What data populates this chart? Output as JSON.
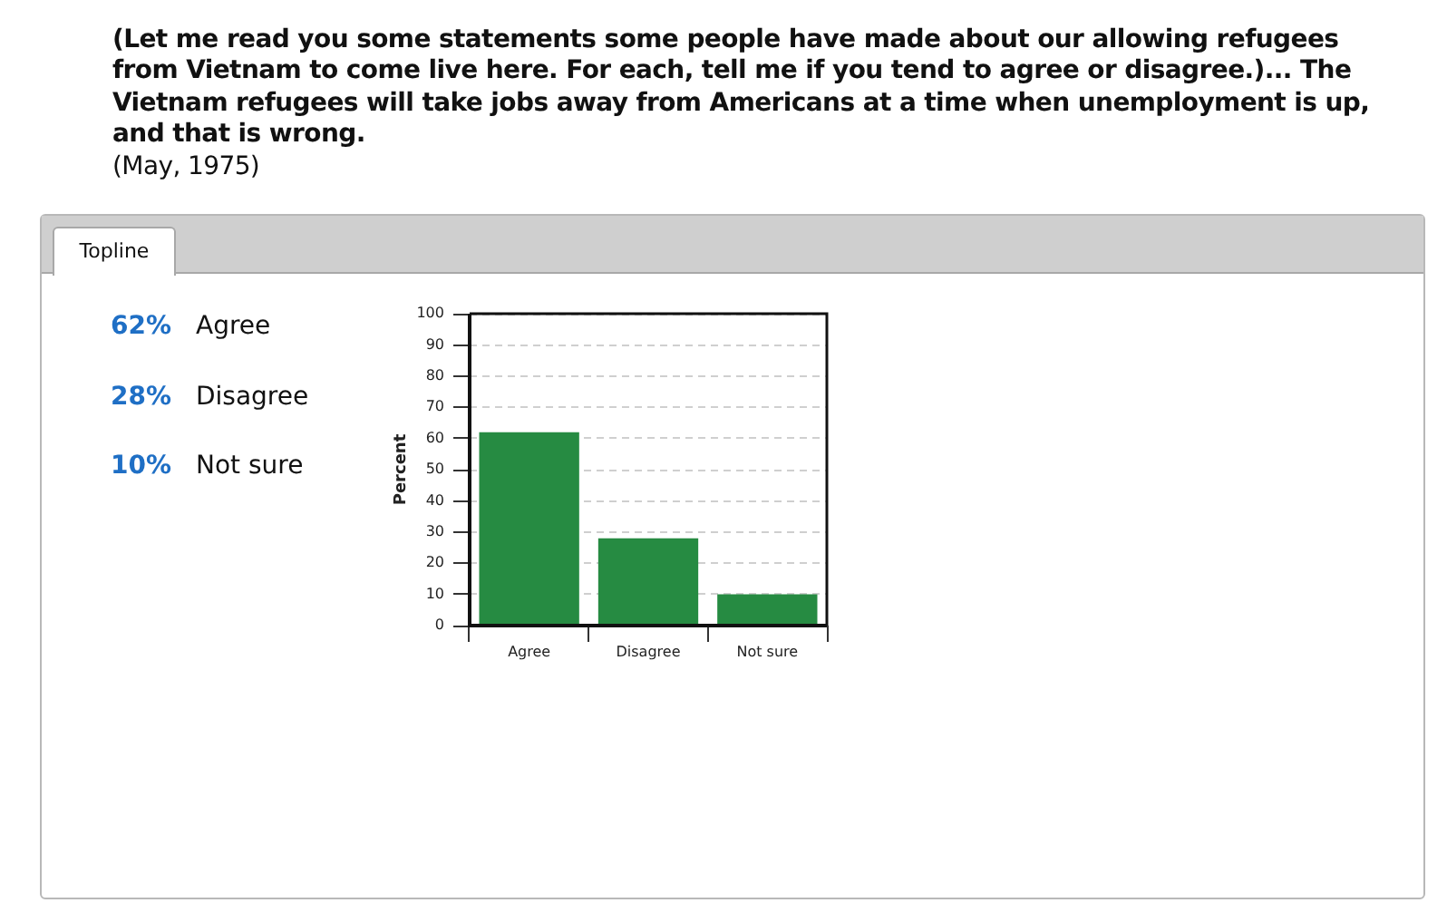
{
  "chart_data": [
    {
      "type": "other",
      "annotations": [
        "62%",
        "Agree",
        "28%",
        "Disagree",
        "10%",
        "Not sure"
      ]
    },
    {
      "type": "bar",
      "title": "(Let me read you some statements some people have made about our allowing refugees from Vietnam to come live here. For each, tell me if you tend to agree or disagree.)... The Vietnam refugees will take jobs away from Americans at a time when unemployment is up, and that is wrong.",
      "annotations": [
        "(May, 1975)",
        "Topline"
      ],
      "categories": [
        "Agree",
        "Disagree",
        "Not sure"
      ],
      "values": [
        62,
        28,
        10
      ],
      "color": "#268b42",
      "ylabel": "Percent",
      "ylim": [
        0,
        100
      ],
      "yticks": [
        0,
        10,
        20,
        30,
        40,
        50,
        60,
        70,
        80,
        90,
        100
      ],
      "grid": "y"
    }
  ]
}
